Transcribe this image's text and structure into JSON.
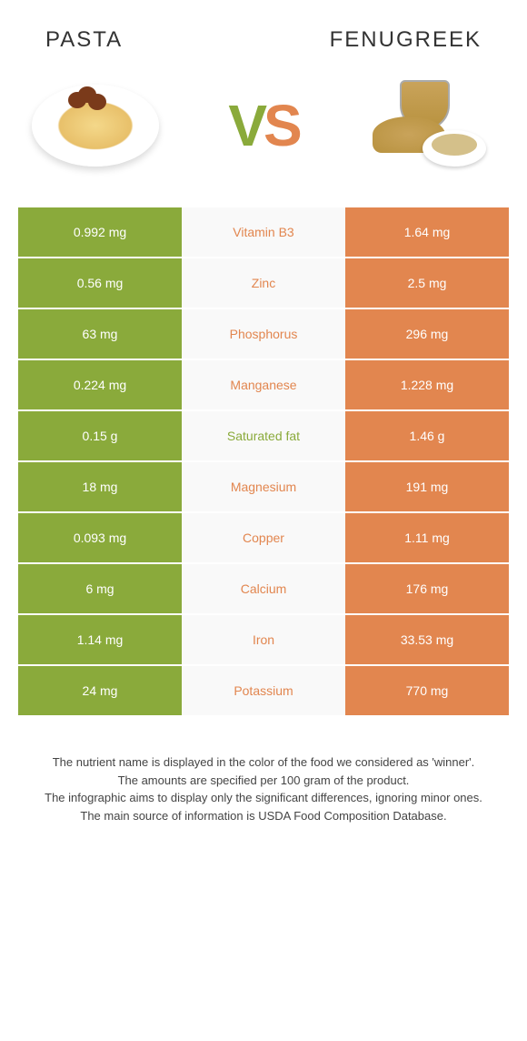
{
  "header": {
    "left_title": "Pasta",
    "right_title": "Fenugreek"
  },
  "vs": {
    "v": "V",
    "s": "S"
  },
  "colors": {
    "left": "#8aaa3b",
    "right": "#e2864f",
    "mid_bg": "#f9f9f9"
  },
  "table": {
    "rows": [
      {
        "left": "0.992 mg",
        "label": "Vitamin B3",
        "right": "1.64 mg",
        "winner": "right"
      },
      {
        "left": "0.56 mg",
        "label": "Zinc",
        "right": "2.5 mg",
        "winner": "right"
      },
      {
        "left": "63 mg",
        "label": "Phosphorus",
        "right": "296 mg",
        "winner": "right"
      },
      {
        "left": "0.224 mg",
        "label": "Manganese",
        "right": "1.228 mg",
        "winner": "right"
      },
      {
        "left": "0.15 g",
        "label": "Saturated fat",
        "right": "1.46 g",
        "winner": "left"
      },
      {
        "left": "18 mg",
        "label": "Magnesium",
        "right": "191 mg",
        "winner": "right"
      },
      {
        "left": "0.093 mg",
        "label": "Copper",
        "right": "1.11 mg",
        "winner": "right"
      },
      {
        "left": "6 mg",
        "label": "Calcium",
        "right": "176 mg",
        "winner": "right"
      },
      {
        "left": "1.14 mg",
        "label": "Iron",
        "right": "33.53 mg",
        "winner": "right"
      },
      {
        "left": "24 mg",
        "label": "Potassium",
        "right": "770 mg",
        "winner": "right"
      }
    ]
  },
  "footer": {
    "line1": "The nutrient name is displayed in the color of the food we considered as 'winner'.",
    "line2": "The amounts are specified per 100 gram of the product.",
    "line3": "The infographic aims to display only the significant differences, ignoring minor ones.",
    "line4": "The main source of information is USDA Food Composition Database."
  }
}
